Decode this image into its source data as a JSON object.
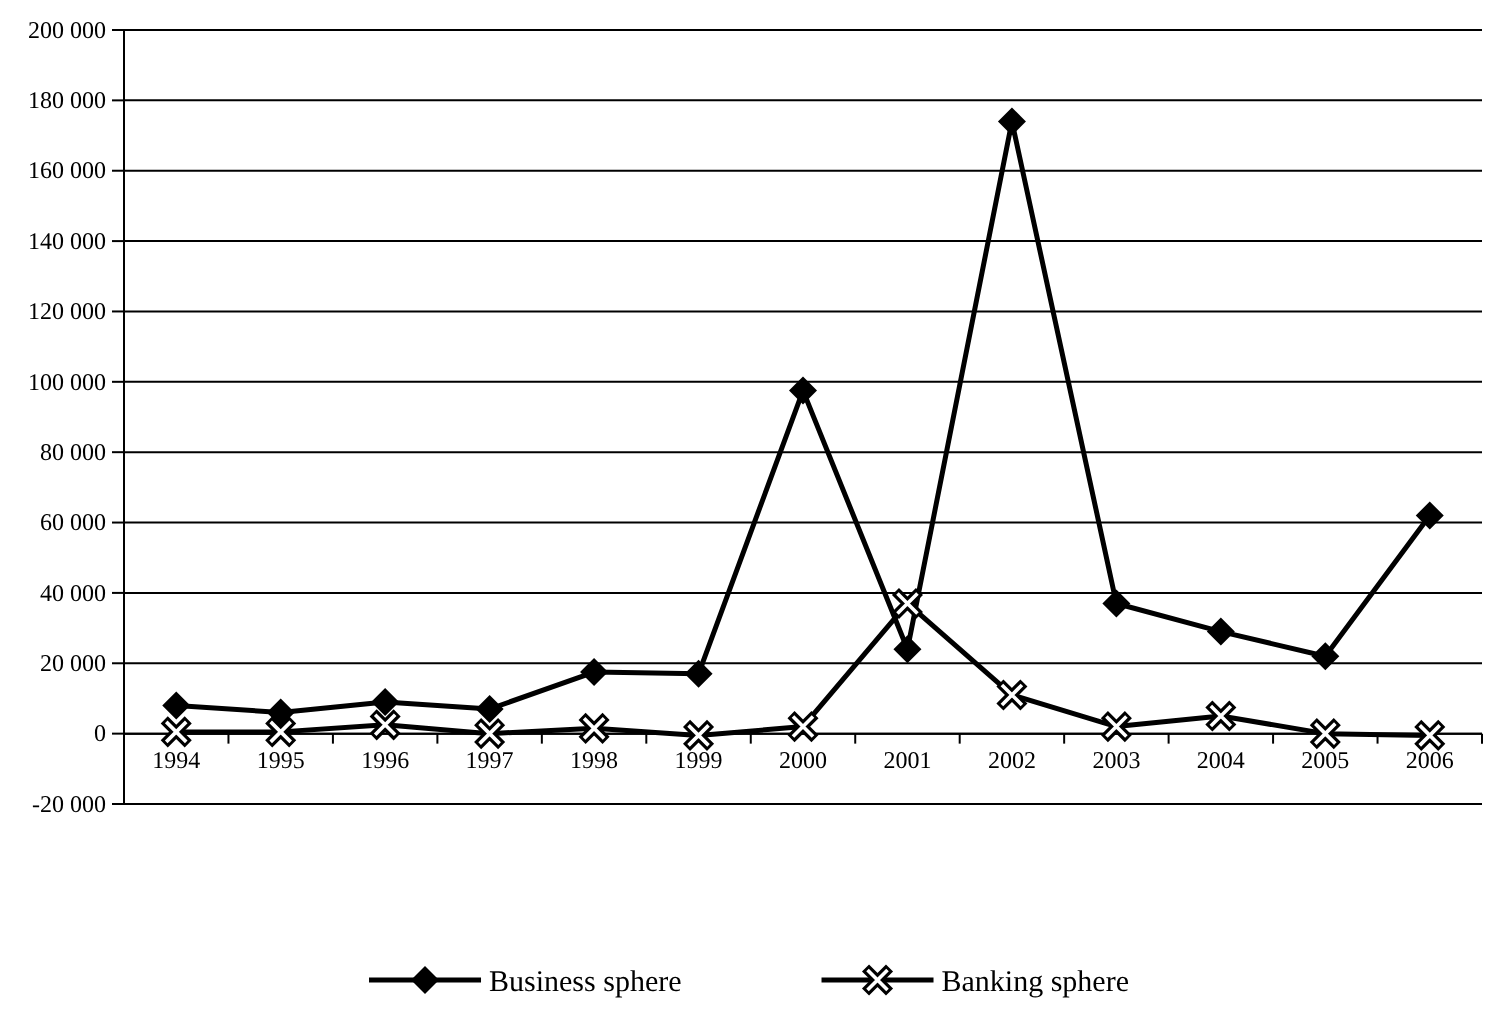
{
  "chart_data": {
    "type": "line",
    "categories": [
      "1994",
      "1995",
      "1996",
      "1997",
      "1998",
      "1999",
      "2000",
      "2001",
      "2002",
      "2003",
      "2004",
      "2005",
      "2006"
    ],
    "series": [
      {
        "name": "Business sphere",
        "color": "#000000",
        "marker": "diamond",
        "values": [
          8000,
          6000,
          9000,
          7000,
          17500,
          17000,
          97500,
          24000,
          174000,
          37000,
          29000,
          22000,
          62000
        ]
      },
      {
        "name": "Banking sphere",
        "color": "#000000",
        "marker": "cross",
        "values": [
          500,
          500,
          2500,
          0,
          1500,
          -500,
          2000,
          37000,
          11000,
          2000,
          5000,
          0,
          -500
        ]
      }
    ],
    "ylim": [
      -20000,
      200000
    ],
    "yticks": [
      {
        "value": -20000,
        "label": "-20 000"
      },
      0,
      {
        "value": 20000,
        "label": "20 000"
      },
      {
        "value": 40000,
        "label": "40 000"
      },
      {
        "value": 60000,
        "label": "60 000"
      },
      {
        "value": 80000,
        "label": "80 000"
      },
      {
        "value": 100000,
        "label": "100 000"
      },
      {
        "value": 120000,
        "label": "120 000"
      },
      {
        "value": 140000,
        "label": "140 000"
      },
      {
        "value": 160000,
        "label": "160 000"
      },
      {
        "value": 180000,
        "label": "180 000"
      },
      {
        "value": 200000,
        "label": "200 000"
      }
    ],
    "grid": "y",
    "legend": "bottom",
    "line_style": "solid"
  }
}
